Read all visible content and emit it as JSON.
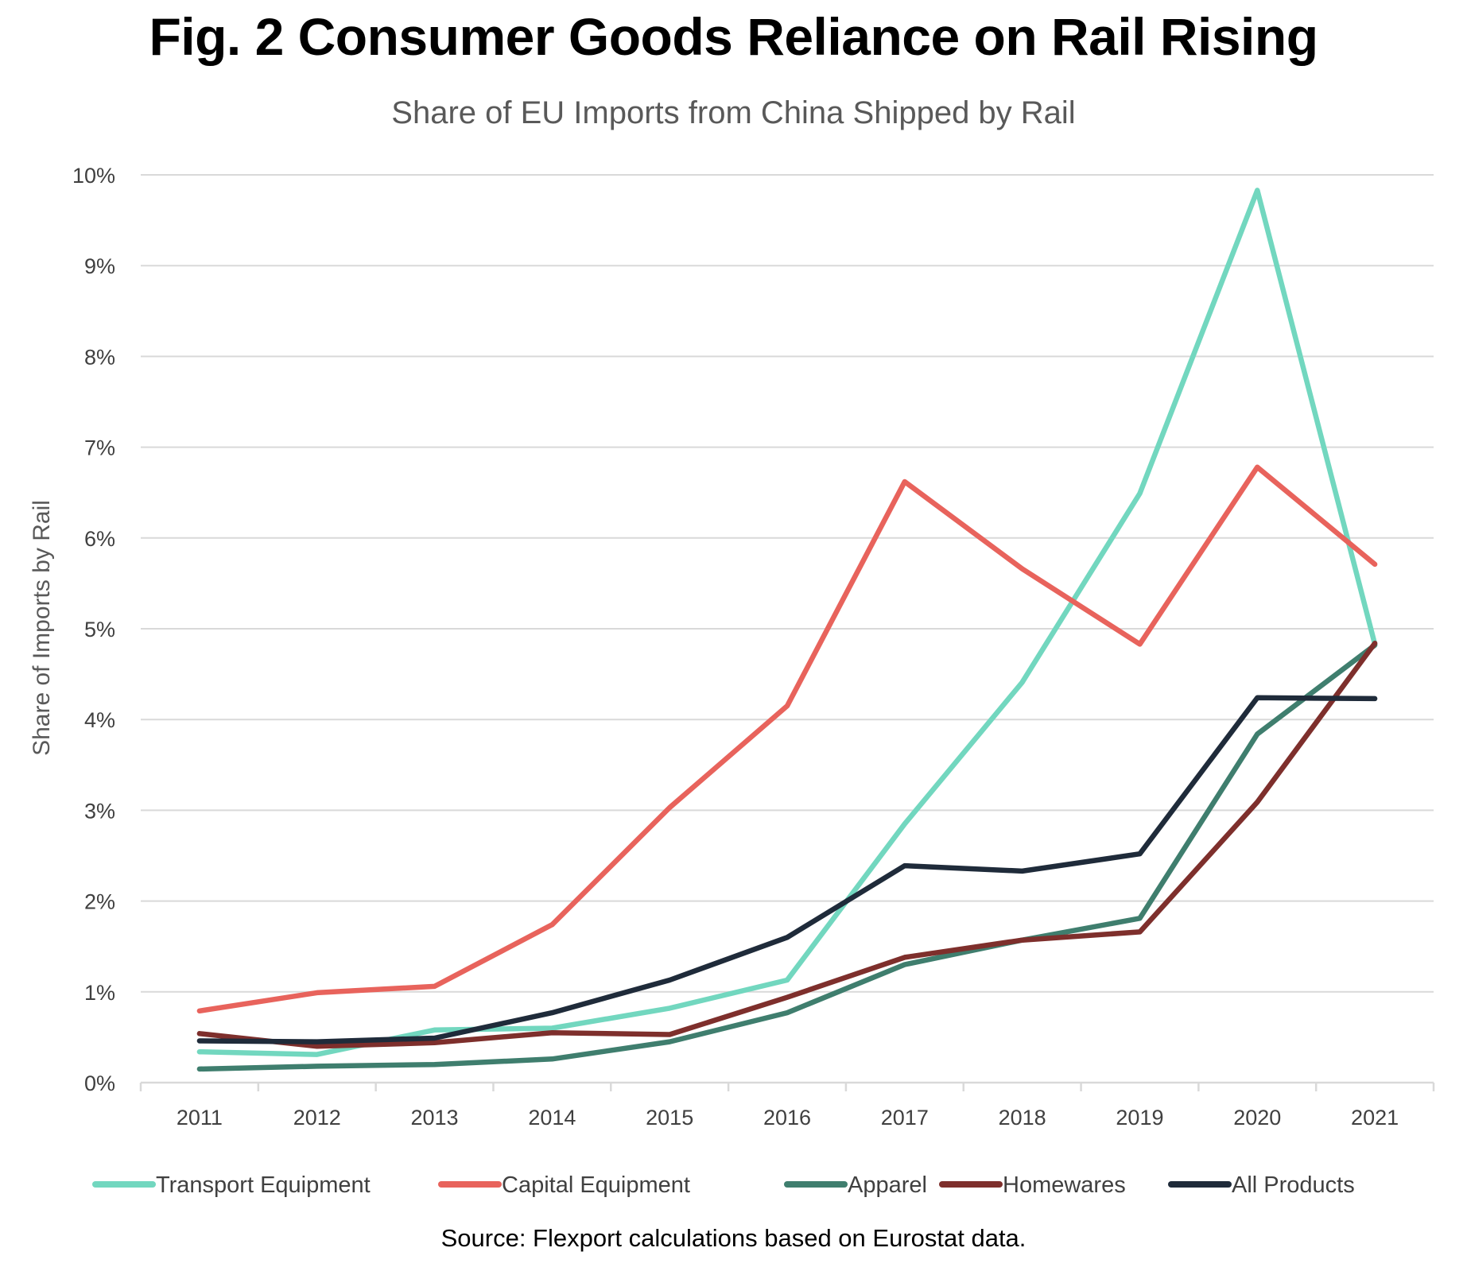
{
  "chart_data": {
    "type": "line",
    "title": "Fig. 2 Consumer Goods Reliance on Rail Rising",
    "subtitle": "Share of EU Imports from China Shipped by Rail",
    "xlabel": "",
    "ylabel": "Share of Imports by Rail",
    "categories": [
      "2011",
      "2012",
      "2013",
      "2014",
      "2015",
      "2016",
      "2017",
      "2018",
      "2019",
      "2020",
      "2021"
    ],
    "ylim": [
      0,
      10
    ],
    "yticks": [
      0,
      1,
      2,
      3,
      4,
      5,
      6,
      7,
      8,
      9,
      10
    ],
    "ytick_labels": [
      "0%",
      "1%",
      "2%",
      "3%",
      "4%",
      "5%",
      "6%",
      "7%",
      "8%",
      "9%",
      "10%"
    ],
    "y_unit": "%",
    "grid": true,
    "legend_position": "bottom",
    "series": [
      {
        "name": "Transport Equipment",
        "color": "#72D7BF",
        "values": [
          0.34,
          0.31,
          0.58,
          0.6,
          0.82,
          1.13,
          2.85,
          4.41,
          6.49,
          9.83,
          4.83
        ]
      },
      {
        "name": "Capital Equipment",
        "color": "#E8635C",
        "values": [
          0.79,
          0.99,
          1.06,
          1.74,
          3.03,
          4.15,
          6.62,
          5.66,
          4.83,
          6.78,
          5.71
        ]
      },
      {
        "name": "Apparel",
        "color": "#3F7E6E",
        "values": [
          0.15,
          0.18,
          0.2,
          0.26,
          0.45,
          0.77,
          1.3,
          1.57,
          1.81,
          3.84,
          4.82
        ]
      },
      {
        "name": "Homewares",
        "color": "#7E2F2C",
        "values": [
          0.54,
          0.4,
          0.44,
          0.55,
          0.53,
          0.94,
          1.38,
          1.57,
          1.66,
          3.09,
          4.84
        ]
      },
      {
        "name": "All Products",
        "color": "#1F2B3A",
        "values": [
          0.46,
          0.45,
          0.49,
          0.77,
          1.13,
          1.6,
          2.39,
          2.33,
          2.52,
          4.24,
          4.23
        ]
      }
    ],
    "source": "Source: Flexport calculations based on Eurostat data."
  }
}
